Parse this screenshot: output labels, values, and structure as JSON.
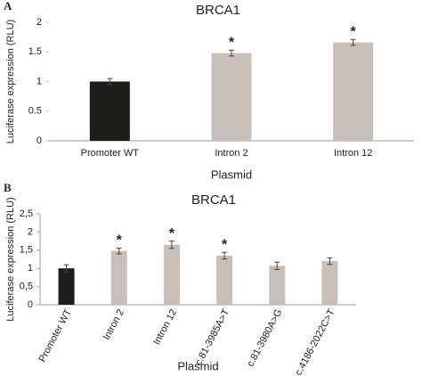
{
  "chart_data": [
    {
      "type": "bar",
      "panel": "A",
      "title": "BRCA1",
      "y_label": "Luciferase expression (RLU)",
      "x_label": "Plasmid",
      "categories": [
        "Promoter WT",
        "Intron 2",
        "Intron 12"
      ],
      "values": [
        1.0,
        1.48,
        1.66
      ],
      "errors": [
        0.05,
        0.05,
        0.05
      ],
      "markers": [
        null,
        "*",
        "*"
      ],
      "colors": [
        "#1c1c1a",
        "#c8bfba",
        "#c8bfba"
      ],
      "ylim": [
        0,
        2
      ],
      "yticks": [
        0,
        {
          "value": 0.5,
          "label": "0.5"
        },
        1,
        {
          "value": 1.5,
          "label": "1.5"
        },
        2
      ],
      "grid": false
    },
    {
      "type": "bar",
      "panel": "B",
      "title": "BRCA1",
      "y_label": "Luciferase expression (RLU)",
      "x_label": "Plasmid",
      "categories": [
        "Promoter WT",
        "Intron 2",
        "Intron 12",
        "c.81-3985A>T",
        "c.81-3980A>G",
        "c.4186-2022C>T"
      ],
      "values": [
        1.0,
        1.48,
        1.65,
        1.35,
        1.07,
        1.2
      ],
      "errors": [
        0.1,
        0.08,
        0.1,
        0.09,
        0.1,
        0.09
      ],
      "markers": [
        null,
        "*",
        "*",
        "*",
        null,
        null
      ],
      "colors": [
        "#1c1c1a",
        "#c8bfba",
        "#c8bfba",
        "#c8bfba",
        "#c8bfba",
        "#c8bfba"
      ],
      "ylim": [
        0,
        2.5
      ],
      "yticks": [
        0,
        {
          "value": 0.5,
          "label": "0,5"
        },
        1,
        {
          "value": 1.5,
          "label": "1,5"
        },
        2,
        {
          "value": 2.5,
          "label": "2,5"
        }
      ],
      "grid": false
    }
  ]
}
